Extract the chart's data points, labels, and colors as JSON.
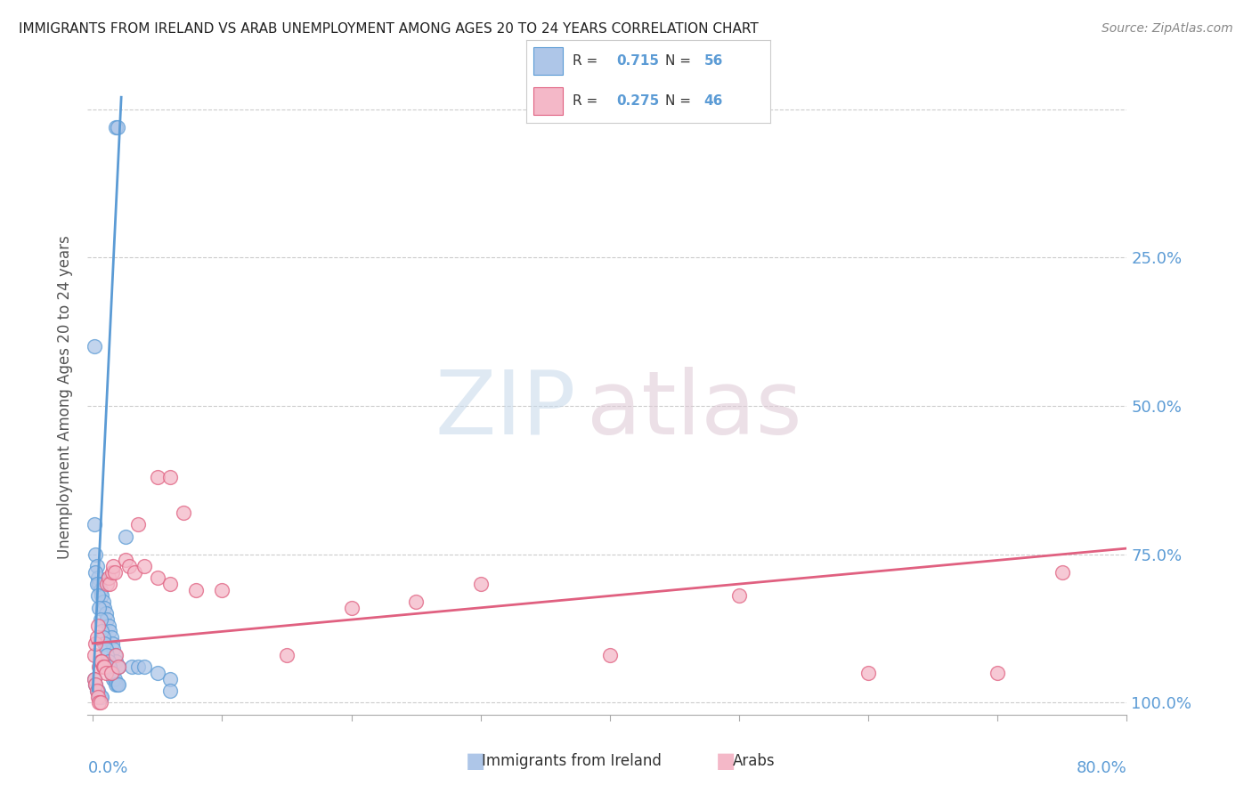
{
  "title": "IMMIGRANTS FROM IRELAND VS ARAB UNEMPLOYMENT AMONG AGES 20 TO 24 YEARS CORRELATION CHART",
  "source": "Source: ZipAtlas.com",
  "ylabel": "Unemployment Among Ages 20 to 24 years",
  "xlim": [
    0.0,
    0.8
  ],
  "ylim": [
    0.0,
    1.05
  ],
  "yticks": [
    0.0,
    0.25,
    0.5,
    0.75,
    1.0
  ],
  "legend_ireland_R": "0.715",
  "legend_ireland_N": "56",
  "legend_arab_R": "0.275",
  "legend_arab_N": "46",
  "color_ireland_fill": "#aec6e8",
  "color_ireland_edge": "#5b9bd5",
  "color_arab_fill": "#f4b8c8",
  "color_arab_edge": "#e06080",
  "color_line_ireland": "#5b9bd5",
  "color_line_arab": "#e06080",
  "color_axis_text": "#5b9bd5",
  "ireland_x": [
    0.018,
    0.019,
    0.001,
    0.001,
    0.002,
    0.003,
    0.004,
    0.005,
    0.006,
    0.007,
    0.008,
    0.009,
    0.01,
    0.011,
    0.012,
    0.013,
    0.014,
    0.015,
    0.016,
    0.017,
    0.018,
    0.019,
    0.02,
    0.002,
    0.003,
    0.004,
    0.005,
    0.006,
    0.007,
    0.008,
    0.009,
    0.01,
    0.011,
    0.012,
    0.013,
    0.014,
    0.015,
    0.016,
    0.017,
    0.018,
    0.019,
    0.02,
    0.001,
    0.002,
    0.003,
    0.004,
    0.005,
    0.006,
    0.007,
    0.025,
    0.03,
    0.035,
    0.04,
    0.05,
    0.06,
    0.06
  ],
  "ireland_y": [
    0.97,
    0.97,
    0.6,
    0.3,
    0.25,
    0.23,
    0.21,
    0.2,
    0.19,
    0.18,
    0.17,
    0.16,
    0.15,
    0.14,
    0.13,
    0.12,
    0.11,
    0.1,
    0.09,
    0.08,
    0.07,
    0.06,
    0.06,
    0.22,
    0.2,
    0.18,
    0.16,
    0.14,
    0.12,
    0.11,
    0.1,
    0.09,
    0.08,
    0.07,
    0.06,
    0.05,
    0.05,
    0.04,
    0.04,
    0.03,
    0.03,
    0.03,
    0.04,
    0.03,
    0.02,
    0.02,
    0.01,
    0.01,
    0.01,
    0.28,
    0.06,
    0.06,
    0.06,
    0.05,
    0.04,
    0.02
  ],
  "arab_x": [
    0.001,
    0.002,
    0.003,
    0.004,
    0.005,
    0.006,
    0.007,
    0.008,
    0.009,
    0.01,
    0.011,
    0.012,
    0.013,
    0.014,
    0.015,
    0.016,
    0.017,
    0.018,
    0.02,
    0.025,
    0.028,
    0.032,
    0.035,
    0.04,
    0.05,
    0.06,
    0.05,
    0.06,
    0.07,
    0.08,
    0.1,
    0.15,
    0.2,
    0.25,
    0.3,
    0.4,
    0.5,
    0.6,
    0.7,
    0.75,
    0.001,
    0.002,
    0.003,
    0.004,
    0.005,
    0.006
  ],
  "arab_y": [
    0.08,
    0.1,
    0.11,
    0.13,
    0.06,
    0.07,
    0.07,
    0.06,
    0.06,
    0.05,
    0.2,
    0.21,
    0.2,
    0.05,
    0.22,
    0.23,
    0.22,
    0.08,
    0.06,
    0.24,
    0.23,
    0.22,
    0.3,
    0.23,
    0.38,
    0.38,
    0.21,
    0.2,
    0.32,
    0.19,
    0.19,
    0.08,
    0.16,
    0.17,
    0.2,
    0.08,
    0.18,
    0.05,
    0.05,
    0.22,
    0.04,
    0.03,
    0.02,
    0.01,
    0.0,
    0.0
  ],
  "ireland_line_x": [
    0.0,
    0.022
  ],
  "ireland_line_y": [
    0.02,
    1.02
  ],
  "arab_line_x": [
    0.0,
    0.8
  ],
  "arab_line_y": [
    0.1,
    0.26
  ]
}
